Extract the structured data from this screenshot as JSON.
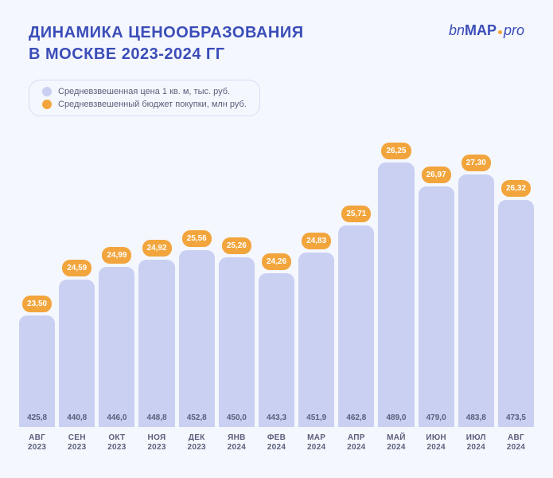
{
  "title_line1": "ДИНАМИКА ЦЕНООБРАЗОВАНИЯ",
  "title_line2": "В МОСКВЕ 2023-2024 ГГ",
  "logo": {
    "bn": "bn",
    "map": "MAP",
    "pro": "pro"
  },
  "legend": {
    "price": "Средневзвешенная цена 1 кв. м, тыс. руб.",
    "budget": "Средневзвешенный бюджет покупки, млн руб."
  },
  "chart": {
    "type": "bar",
    "bar_color": "#c9d0f2",
    "pill_color": "#f2a53c",
    "pill_text_color": "#ffffff",
    "bar_label_color": "#5a5f7a",
    "axis_color": "#5a5f7a",
    "title_color": "#3b4db8",
    "background_color": "#f5f7ff",
    "bar_width_ratio": 0.85,
    "bar_border_radius": 10,
    "pill_fontsize": 10,
    "bar_label_fontsize": 10,
    "axis_fontsize": 10,
    "title_fontsize": 20,
    "price_scale": {
      "min": 380,
      "max": 500
    },
    "series": [
      {
        "month": "АВГ",
        "year": "2023",
        "price": 425.8,
        "price_label": "425,8",
        "budget": "23,50"
      },
      {
        "month": "СЕН",
        "year": "2023",
        "price": 440.8,
        "price_label": "440,8",
        "budget": "24,59"
      },
      {
        "month": "ОКТ",
        "year": "2023",
        "price": 446.0,
        "price_label": "446,0",
        "budget": "24,99"
      },
      {
        "month": "НОЯ",
        "year": "2023",
        "price": 448.8,
        "price_label": "448,8",
        "budget": "24,92"
      },
      {
        "month": "ДЕК",
        "year": "2023",
        "price": 452.8,
        "price_label": "452,8",
        "budget": "25,56"
      },
      {
        "month": "ЯНВ",
        "year": "2024",
        "price": 450.0,
        "price_label": "450,0",
        "budget": "25,26"
      },
      {
        "month": "ФЕВ",
        "year": "2024",
        "price": 443.3,
        "price_label": "443,3",
        "budget": "24,26"
      },
      {
        "month": "МАР",
        "year": "2024",
        "price": 451.9,
        "price_label": "451,9",
        "budget": "24,83"
      },
      {
        "month": "АПР",
        "year": "2024",
        "price": 462.8,
        "price_label": "462,8",
        "budget": "25,71"
      },
      {
        "month": "МАЙ",
        "year": "2024",
        "price": 489.0,
        "price_label": "489,0",
        "budget": "26,25"
      },
      {
        "month": "ИЮН",
        "year": "2024",
        "price": 479.0,
        "price_label": "479,0",
        "budget": "26,97"
      },
      {
        "month": "ИЮЛ",
        "year": "2024",
        "price": 483.8,
        "price_label": "483,8",
        "budget": "27,30"
      },
      {
        "month": "АВГ",
        "year": "2024",
        "price": 473.5,
        "price_label": "473,5",
        "budget": "26,32"
      }
    ]
  }
}
